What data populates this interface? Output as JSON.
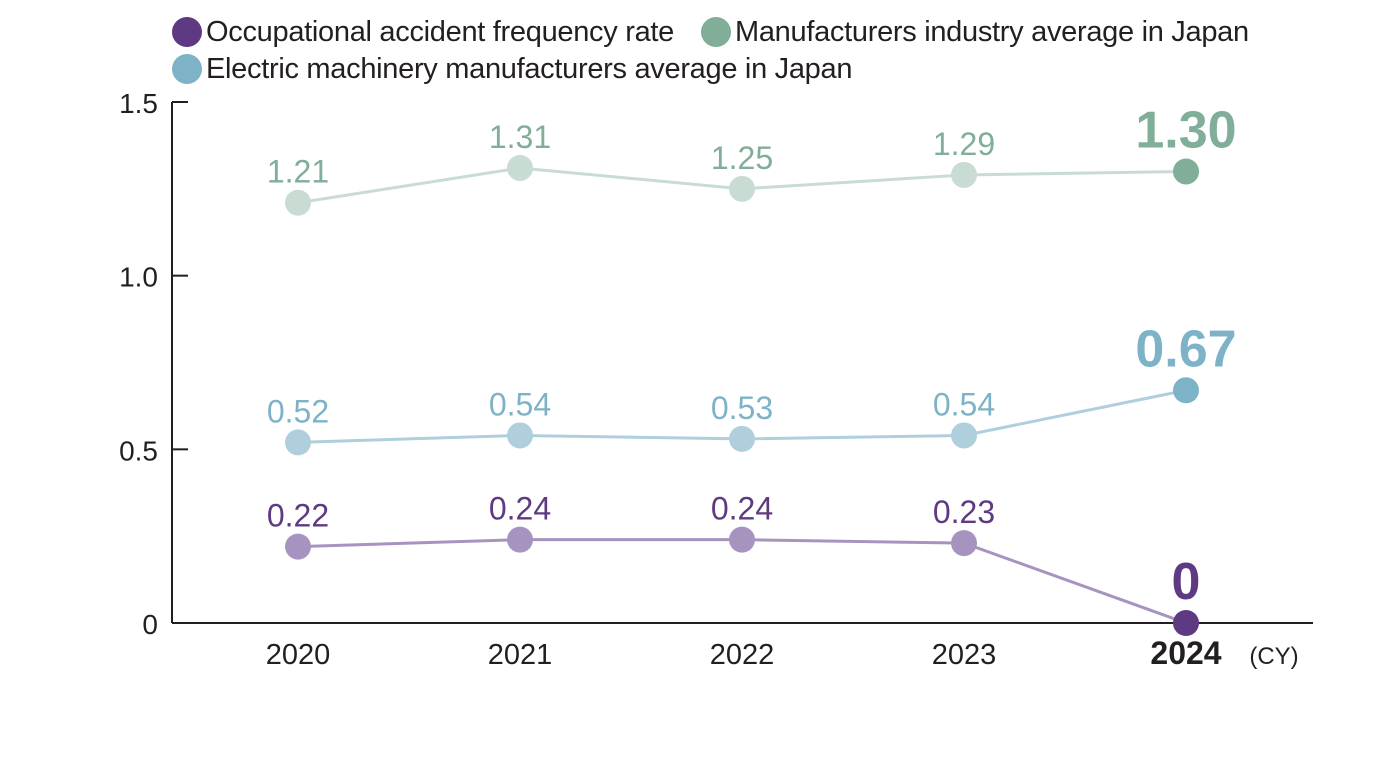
{
  "legend": [
    {
      "label": "Occupational accident frequency rate",
      "color": "#5e3a82"
    },
    {
      "label": "Manufacturers industry average in Japan",
      "color": "#80ae98"
    },
    {
      "label": "Electric machinery manufacturers average in Japan",
      "color": "#7eb3c7"
    }
  ],
  "chart_data": {
    "type": "line",
    "x": [
      "2020",
      "2021",
      "2022",
      "2023",
      "2024"
    ],
    "highlight_x": "2024",
    "xunit": "(CY)",
    "ylim": [
      0,
      1.5
    ],
    "yticks": [
      {
        "value": 0,
        "label": "0"
      },
      {
        "value": 0.5,
        "label": "0.5"
      },
      {
        "value": 1.0,
        "label": "1.0"
      },
      {
        "value": 1.5,
        "label": "1.5"
      }
    ],
    "grid": false,
    "legend_position": "top-left",
    "series": [
      {
        "name": "Manufacturers industry average in Japan",
        "values": [
          1.21,
          1.31,
          1.25,
          1.29,
          1.3
        ],
        "labels": [
          "1.21",
          "1.31",
          "1.25",
          "1.29",
          "1.30"
        ],
        "color": "#80ae98",
        "light_color": "#c8dcd3"
      },
      {
        "name": "Electric machinery manufacturers average in Japan",
        "values": [
          0.52,
          0.54,
          0.53,
          0.54,
          0.67
        ],
        "labels": [
          "0.52",
          "0.54",
          "0.53",
          "0.54",
          "0.67"
        ],
        "color": "#7eb3c7",
        "light_color": "#aecfdb"
      },
      {
        "name": "Occupational accident frequency rate",
        "values": [
          0.22,
          0.24,
          0.24,
          0.23,
          0
        ],
        "labels": [
          "0.22",
          "0.24",
          "0.24",
          "0.23",
          "0"
        ],
        "color": "#5e3a82",
        "light_color": "#a693bf"
      }
    ]
  }
}
